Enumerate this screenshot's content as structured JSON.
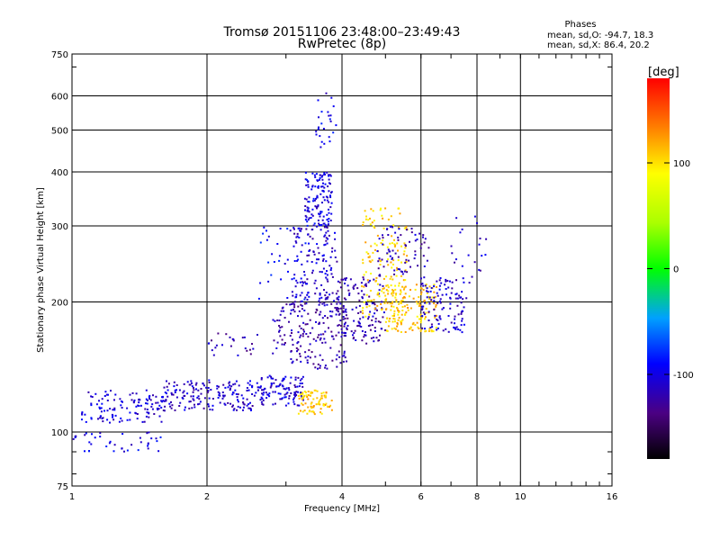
{
  "header": {
    "title_line1": "Tromsø 20151106 23:48:00–23:49:43",
    "title_line2": "RwPretec (8p)",
    "corner_line1": "Phases",
    "corner_line2": "mean, sd,O: -94.7, 18.3",
    "corner_line3": "mean, sd,X:  86.4, 20.2"
  },
  "chart_data": {
    "type": "scatter",
    "title": "Tromsø 20151106 23:48:00–23:49:43",
    "subtitle": "RwPretec (8p)",
    "xlabel": "Frequency [MHz]",
    "ylabel": "Stationary phase Virtual Height [km]",
    "x_scale": "log",
    "y_scale": "log",
    "xlim": [
      1,
      16
    ],
    "ylim": [
      75,
      750
    ],
    "x_ticks": [
      1,
      2,
      4,
      6,
      8,
      10,
      16
    ],
    "y_ticks": [
      75,
      100,
      200,
      300,
      400,
      500,
      600,
      750
    ],
    "grid": true,
    "colorbar": {
      "label": "[deg]",
      "range": [
        -180,
        180
      ],
      "ticks": [
        100,
        0,
        -100
      ],
      "colormap": "rainbow"
    },
    "clusters": [
      {
        "x0": 1.05,
        "x1": 1.6,
        "y0": 105,
        "y1": 125,
        "phase": -105,
        "n": 120
      },
      {
        "x0": 1.6,
        "x1": 2.6,
        "y0": 112,
        "y1": 132,
        "phase": -110,
        "n": 170
      },
      {
        "x0": 2.6,
        "x1": 3.3,
        "y0": 115,
        "y1": 135,
        "phase": -105,
        "n": 110
      },
      {
        "x0": 1.0,
        "x1": 1.6,
        "y0": 90,
        "y1": 100,
        "phase": -100,
        "n": 40
      },
      {
        "x0": 3.2,
        "x1": 3.8,
        "y0": 110,
        "y1": 125,
        "phase": 110,
        "n": 80
      },
      {
        "x0": 3.3,
        "x1": 3.8,
        "y0": 300,
        "y1": 400,
        "phase": -100,
        "n": 130
      },
      {
        "x0": 3.1,
        "x1": 3.9,
        "y0": 200,
        "y1": 300,
        "phase": -110,
        "n": 130
      },
      {
        "x0": 2.8,
        "x1": 4.1,
        "y0": 140,
        "y1": 200,
        "phase": -120,
        "n": 190
      },
      {
        "x0": 3.9,
        "x1": 5.0,
        "y0": 160,
        "y1": 230,
        "phase": -120,
        "n": 140
      },
      {
        "x0": 4.4,
        "x1": 5.6,
        "y0": 180,
        "y1": 330,
        "phase": 105,
        "n": 170
      },
      {
        "x0": 5.0,
        "x1": 6.5,
        "y0": 170,
        "y1": 220,
        "phase": 110,
        "n": 140
      },
      {
        "x0": 4.8,
        "x1": 6.3,
        "y0": 230,
        "y1": 300,
        "phase": -115,
        "n": 70
      },
      {
        "x0": 6.0,
        "x1": 7.5,
        "y0": 170,
        "y1": 230,
        "phase": -110,
        "n": 110
      },
      {
        "x0": 2.6,
        "x1": 3.4,
        "y0": 200,
        "y1": 300,
        "phase": -95,
        "n": 40
      },
      {
        "x0": 3.5,
        "x1": 3.9,
        "y0": 450,
        "y1": 640,
        "phase": -100,
        "n": 25
      },
      {
        "x0": 2.0,
        "x1": 2.6,
        "y0": 150,
        "y1": 170,
        "phase": -120,
        "n": 25
      },
      {
        "x0": 7.0,
        "x1": 8.4,
        "y0": 200,
        "y1": 330,
        "phase": -110,
        "n": 25
      }
    ]
  }
}
